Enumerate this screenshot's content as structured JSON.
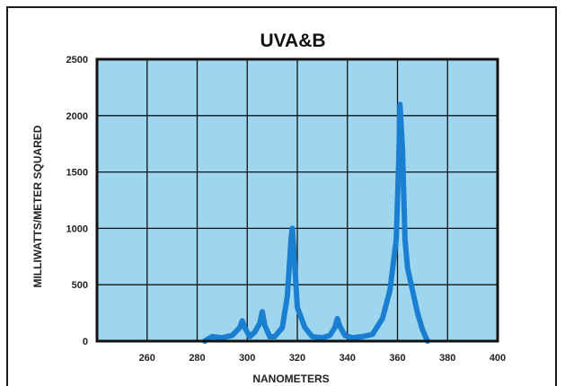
{
  "chart_data": {
    "type": "line",
    "title": "UVA&B",
    "xlabel": "NANOMETERS",
    "ylabel": "MILLIWATTS/METER SQUARED",
    "xlim": [
      240,
      400
    ],
    "ylim": [
      0,
      2500
    ],
    "xticks": [
      260,
      280,
      300,
      320,
      340,
      360,
      380,
      400
    ],
    "yticks": [
      0,
      500,
      1000,
      1500,
      2000,
      2500
    ],
    "grid": true,
    "colors": {
      "background": "#9fd6ef",
      "line": "#1a7fd1",
      "grid": "#111111"
    },
    "series": [
      {
        "x": [
          283,
          286,
          290,
          294,
          297,
          298,
          299,
          301,
          303,
          305,
          306,
          307,
          309,
          311,
          314,
          316,
          317.5,
          318,
          318.5,
          320,
          323,
          326,
          330,
          333,
          335,
          336,
          337,
          339,
          342,
          346,
          350,
          354,
          357,
          359.5,
          360.5,
          361,
          362,
          363,
          364,
          366,
          368,
          370,
          372
        ],
        "y": [
          0,
          40,
          30,
          50,
          120,
          180,
          120,
          40,
          80,
          160,
          260,
          140,
          40,
          40,
          120,
          400,
          900,
          1000,
          850,
          300,
          120,
          40,
          30,
          50,
          120,
          200,
          130,
          50,
          30,
          40,
          60,
          200,
          450,
          900,
          1600,
          2100,
          1700,
          900,
          650,
          450,
          250,
          100,
          0
        ]
      }
    ]
  }
}
